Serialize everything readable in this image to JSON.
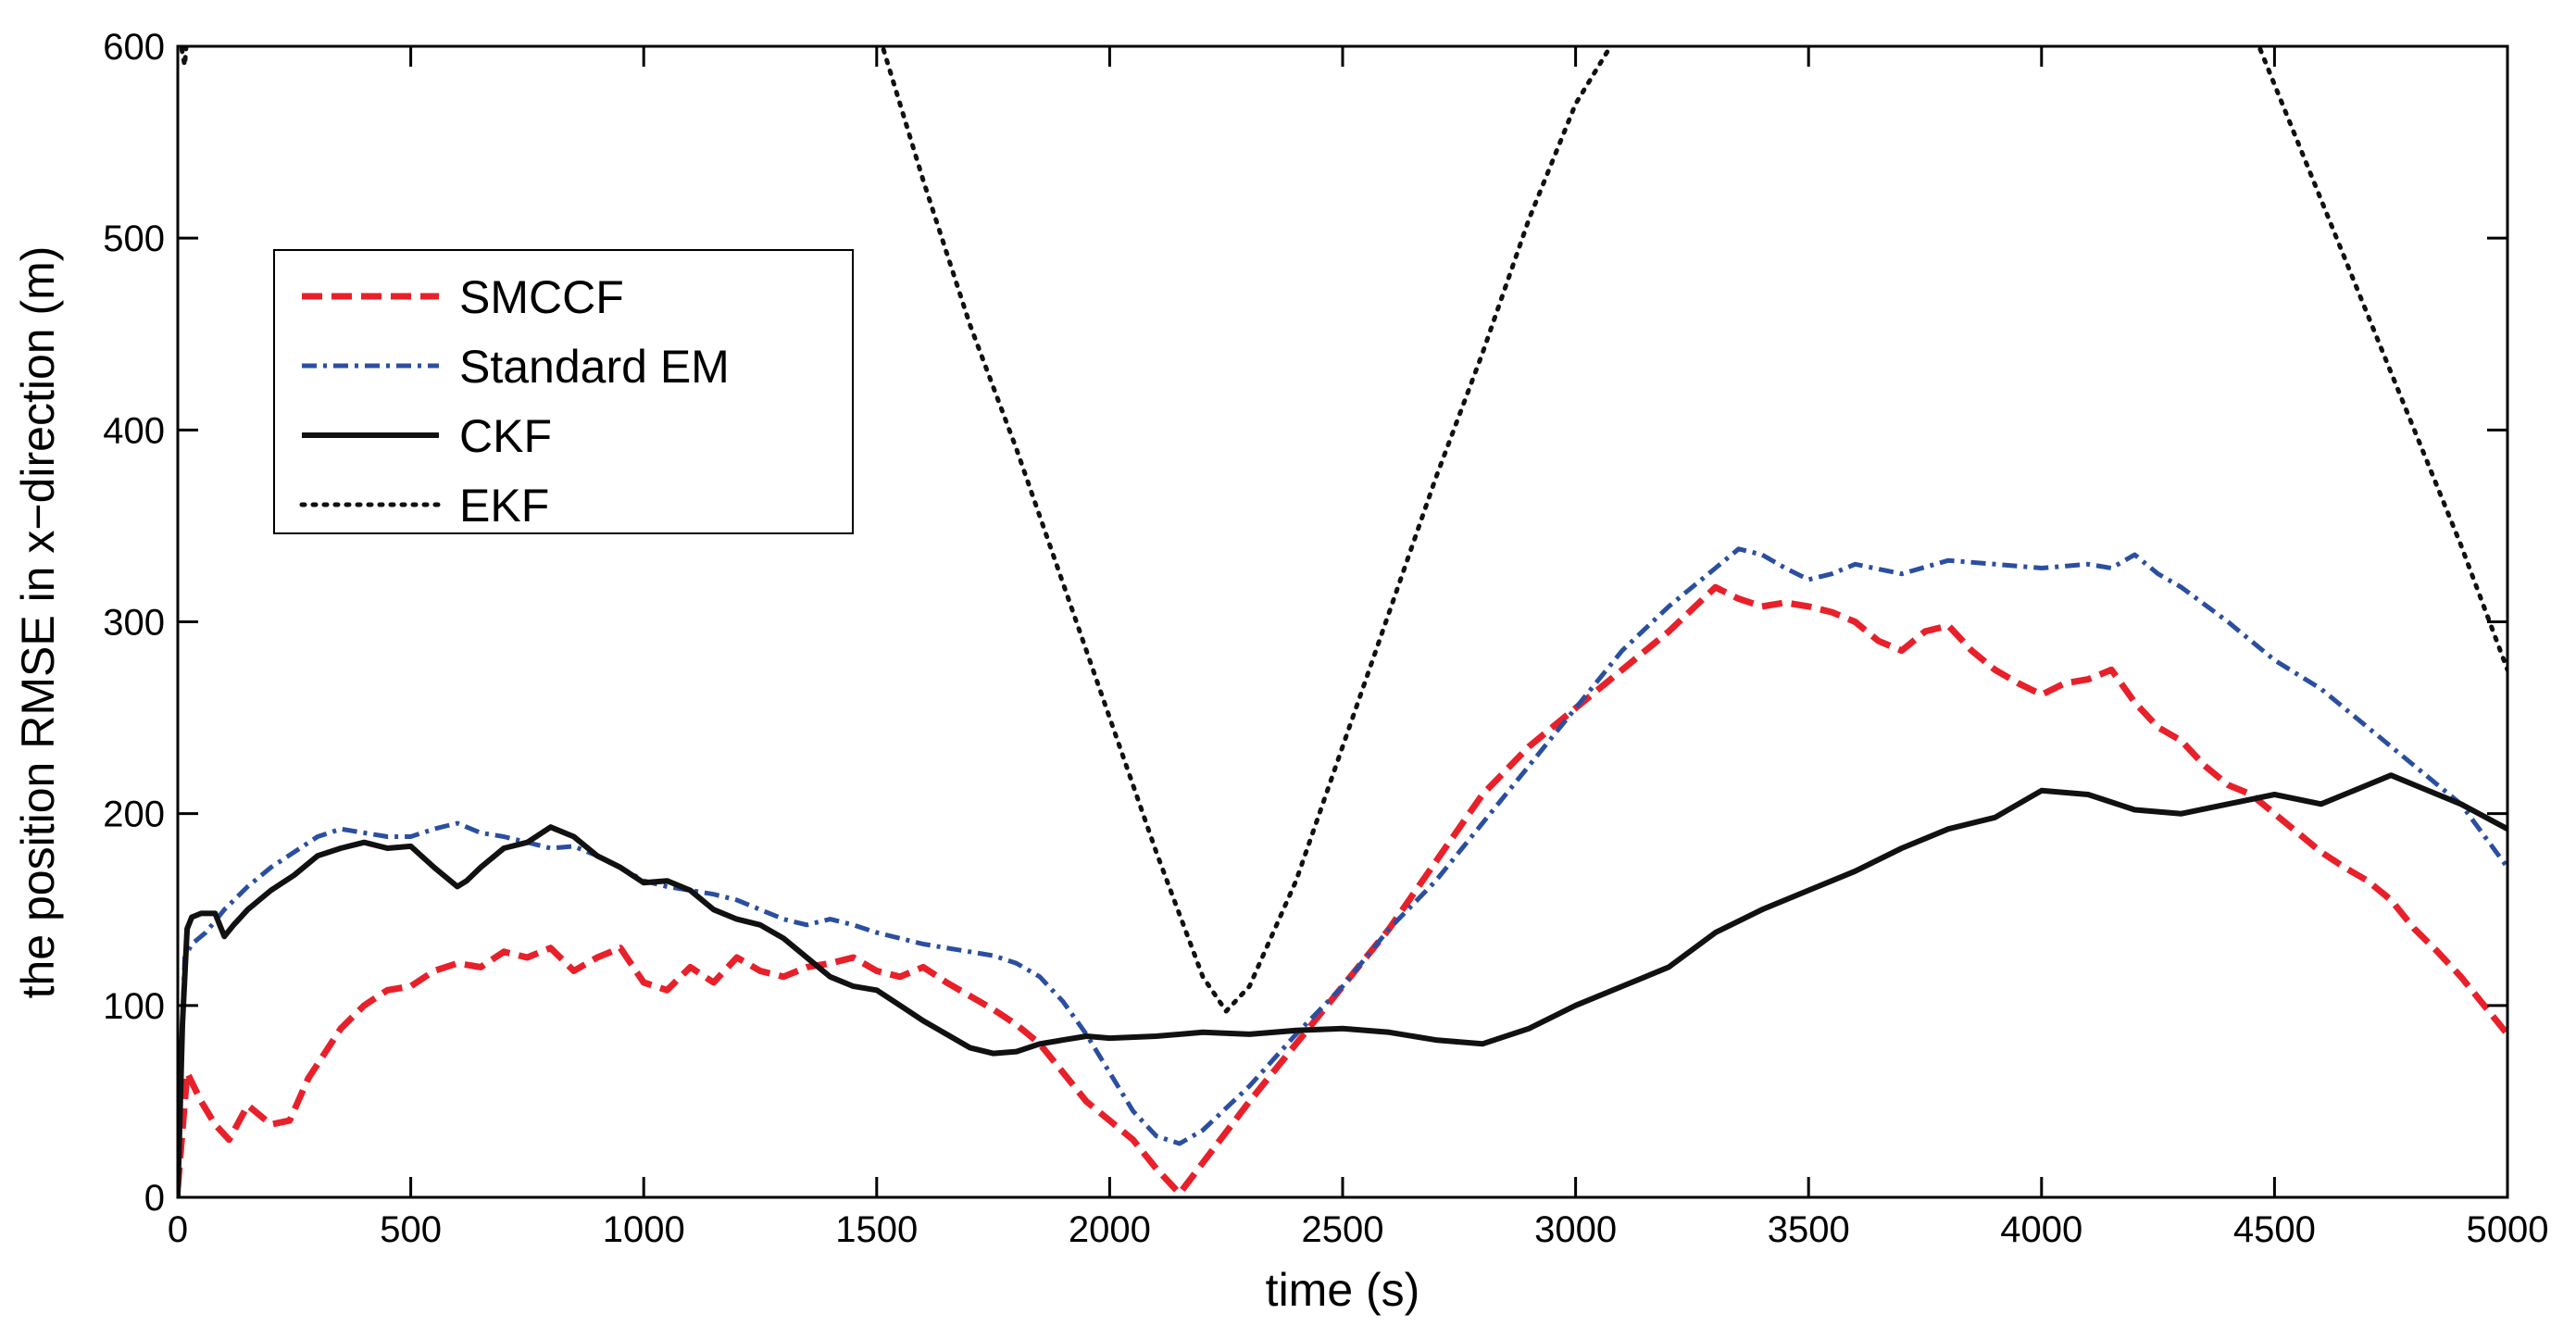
{
  "chart_data": {
    "type": "line",
    "title": "",
    "xlabel": "time (s)",
    "ylabel": "the position RMSE in x−direction (m)",
    "xlim": [
      0,
      5000
    ],
    "ylim": [
      0,
      600
    ],
    "xticks": [
      0,
      500,
      1000,
      1500,
      2000,
      2500,
      3000,
      3500,
      4000,
      4500,
      5000
    ],
    "yticks": [
      0,
      100,
      200,
      300,
      400,
      500,
      600
    ],
    "xtick_labels": [
      "0",
      "500",
      "1000",
      "1500",
      "2000",
      "2500",
      "3000",
      "3500",
      "4000",
      "4500",
      "5000"
    ],
    "ytick_labels": [
      "0",
      "100",
      "200",
      "300",
      "400",
      "500",
      "600"
    ],
    "grid": false,
    "legend_position": "top-left",
    "series": [
      {
        "name": "SMCCF",
        "color": "#e8202a",
        "style": "dashed",
        "x": [
          0,
          20,
          50,
          80,
          110,
          150,
          200,
          240,
          280,
          350,
          400,
          450,
          500,
          550,
          600,
          650,
          700,
          750,
          800,
          850,
          900,
          950,
          1000,
          1050,
          1100,
          1150,
          1200,
          1250,
          1300,
          1350,
          1400,
          1450,
          1500,
          1550,
          1600,
          1650,
          1700,
          1750,
          1800,
          1850,
          1900,
          1950,
          2000,
          2050,
          2100,
          2150,
          2200,
          2300,
          2400,
          2500,
          2600,
          2700,
          2800,
          2900,
          3000,
          3100,
          3200,
          3300,
          3350,
          3400,
          3450,
          3500,
          3550,
          3600,
          3650,
          3700,
          3750,
          3800,
          3850,
          3900,
          3950,
          4000,
          4050,
          4100,
          4150,
          4200,
          4250,
          4300,
          4350,
          4400,
          4450,
          4500,
          4550,
          4600,
          4650,
          4700,
          4750,
          4800,
          4850,
          4900,
          4950,
          5000
        ],
        "values": [
          5,
          65,
          50,
          38,
          30,
          48,
          38,
          40,
          62,
          88,
          100,
          108,
          110,
          118,
          122,
          120,
          128,
          125,
          130,
          118,
          125,
          130,
          112,
          108,
          120,
          112,
          125,
          118,
          115,
          120,
          122,
          125,
          118,
          115,
          120,
          112,
          105,
          98,
          90,
          80,
          65,
          50,
          40,
          30,
          15,
          2,
          18,
          50,
          80,
          110,
          140,
          175,
          210,
          235,
          255,
          275,
          295,
          318,
          312,
          308,
          310,
          308,
          305,
          300,
          290,
          285,
          295,
          298,
          285,
          275,
          268,
          262,
          268,
          270,
          275,
          258,
          245,
          238,
          225,
          215,
          210,
          200,
          190,
          180,
          172,
          165,
          155,
          140,
          128,
          115,
          100,
          85
        ]
      },
      {
        "name": "Standard EM",
        "color": "#2b4fa0",
        "style": "dashdot",
        "x": [
          0,
          15,
          30,
          60,
          100,
          150,
          200,
          250,
          300,
          350,
          400,
          450,
          500,
          550,
          600,
          650,
          700,
          750,
          800,
          850,
          900,
          950,
          1000,
          1050,
          1100,
          1150,
          1200,
          1250,
          1300,
          1350,
          1400,
          1450,
          1500,
          1550,
          1600,
          1650,
          1700,
          1750,
          1800,
          1850,
          1900,
          1950,
          2000,
          2050,
          2100,
          2150,
          2200,
          2300,
          2400,
          2500,
          2600,
          2700,
          2800,
          2900,
          3000,
          3100,
          3200,
          3300,
          3350,
          3400,
          3450,
          3500,
          3550,
          3600,
          3700,
          3800,
          3900,
          4000,
          4100,
          4150,
          4200,
          4250,
          4300,
          4400,
          4500,
          4600,
          4700,
          4800,
          4900,
          5000
        ],
        "values": [
          20,
          125,
          132,
          138,
          150,
          162,
          172,
          180,
          188,
          192,
          190,
          188,
          188,
          192,
          195,
          190,
          188,
          185,
          182,
          183,
          178,
          172,
          165,
          162,
          160,
          158,
          155,
          150,
          145,
          142,
          145,
          142,
          138,
          135,
          132,
          130,
          128,
          126,
          122,
          115,
          102,
          85,
          65,
          45,
          32,
          28,
          35,
          58,
          85,
          110,
          140,
          165,
          195,
          225,
          255,
          285,
          308,
          328,
          338,
          335,
          328,
          322,
          325,
          330,
          325,
          332,
          330,
          328,
          330,
          328,
          335,
          325,
          318,
          300,
          280,
          265,
          245,
          225,
          205,
          172
        ]
      },
      {
        "name": "CKF",
        "color": "#111111",
        "style": "solid",
        "x": [
          0,
          10,
          20,
          30,
          50,
          80,
          100,
          120,
          150,
          200,
          250,
          300,
          350,
          400,
          450,
          500,
          550,
          600,
          620,
          650,
          700,
          750,
          800,
          850,
          900,
          950,
          1000,
          1050,
          1100,
          1150,
          1200,
          1250,
          1300,
          1350,
          1400,
          1450,
          1500,
          1550,
          1600,
          1650,
          1700,
          1750,
          1800,
          1850,
          1900,
          1950,
          2000,
          2100,
          2200,
          2300,
          2400,
          2500,
          2600,
          2700,
          2800,
          2900,
          3000,
          3100,
          3200,
          3300,
          3400,
          3500,
          3600,
          3700,
          3800,
          3900,
          4000,
          4100,
          4200,
          4300,
          4400,
          4500,
          4600,
          4700,
          4750,
          4800,
          4900,
          5000
        ],
        "values": [
          0,
          90,
          140,
          146,
          148,
          148,
          136,
          142,
          150,
          160,
          168,
          178,
          182,
          185,
          182,
          183,
          172,
          162,
          165,
          172,
          182,
          185,
          193,
          188,
          178,
          172,
          164,
          165,
          160,
          150,
          145,
          142,
          135,
          125,
          115,
          110,
          108,
          100,
          92,
          85,
          78,
          75,
          76,
          80,
          82,
          84,
          83,
          84,
          86,
          85,
          87,
          88,
          86,
          82,
          80,
          88,
          100,
          110,
          120,
          138,
          150,
          160,
          170,
          182,
          192,
          198,
          212,
          210,
          202,
          200,
          205,
          210,
          205,
          215,
          220,
          215,
          205,
          192
        ]
      },
      {
        "name": "EKF",
        "color": "#111111",
        "style": "dotted",
        "x": [
          0,
          15,
          30,
          60,
          1400,
          1500,
          1600,
          1700,
          1800,
          1900,
          2000,
          2100,
          2200,
          2250,
          2300,
          2400,
          2500,
          2600,
          2700,
          2800,
          2900,
          3000,
          3100,
          3200,
          4300,
          4400,
          4500,
          4600,
          4700,
          4800,
          4900,
          5000
        ],
        "values": [
          610,
          590,
          640,
          700,
          700,
          610,
          530,
          455,
          390,
          320,
          250,
          180,
          115,
          97,
          110,
          165,
          235,
          305,
          375,
          440,
          510,
          570,
          610,
          700,
          700,
          640,
          580,
          520,
          460,
          400,
          340,
          275
        ]
      }
    ]
  }
}
